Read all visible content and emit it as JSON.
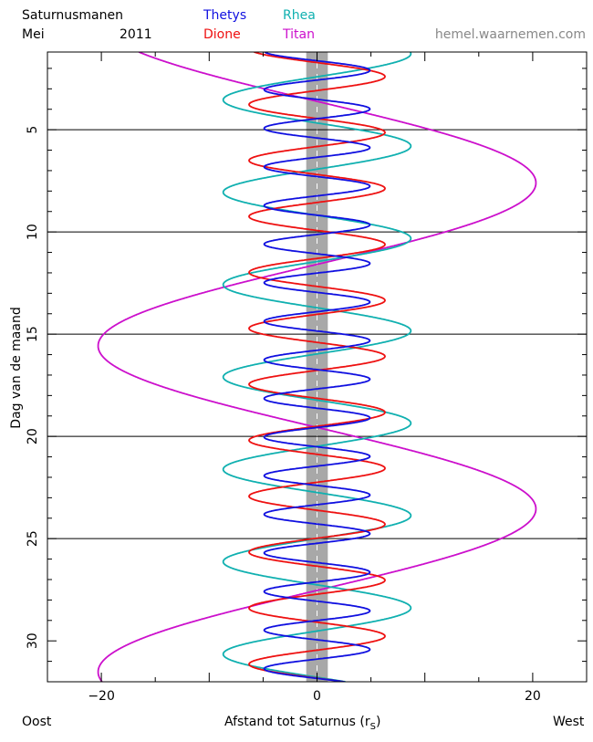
{
  "header": {
    "title_line1": "Saturnusmanen",
    "title_line2_month": "Mei",
    "title_line2_year": "2011",
    "site": "hemel.waarnemen.com"
  },
  "legend": [
    {
      "name": "Thetys",
      "color": "#1010e0"
    },
    {
      "name": "Rhea",
      "color": "#10b0b0"
    },
    {
      "name": "Dione",
      "color": "#ee1111"
    },
    {
      "name": "Titan",
      "color": "#cc10cc"
    }
  ],
  "footer": {
    "left": "Oost",
    "xlabel_main": "Afstand tot Saturnus (r",
    "xlabel_sub": "S",
    "xlabel_close": ")",
    "right": "West"
  },
  "chart_data": {
    "type": "line",
    "title": "Saturnusmanen Mei 2011",
    "xlabel": "Afstand tot Saturnus (rS)",
    "ylabel": "Dag van de maand",
    "xlim": [
      -25,
      25
    ],
    "ylim": [
      1.2,
      32
    ],
    "xticks": [
      -20,
      0,
      20
    ],
    "yticks": [
      5,
      10,
      15,
      20,
      25,
      30
    ],
    "grid_y": [
      5,
      10,
      15,
      20,
      25
    ],
    "saturn_band_halfwidth": 1,
    "series": [
      {
        "name": "Thetys",
        "color": "#1010e0",
        "amplitude": 4.9,
        "period_days": 1.888,
        "phase_day": 2.1
      },
      {
        "name": "Dione",
        "color": "#ee1111",
        "amplitude": 6.3,
        "period_days": 2.737,
        "phase_day": 2.4
      },
      {
        "name": "Rhea",
        "color": "#10b0b0",
        "amplitude": 8.7,
        "period_days": 4.518,
        "phase_day": 5.8
      },
      {
        "name": "Titan",
        "color": "#cc10cc",
        "amplitude": 20.3,
        "period_days": 15.945,
        "phase_day": 7.6
      }
    ]
  }
}
